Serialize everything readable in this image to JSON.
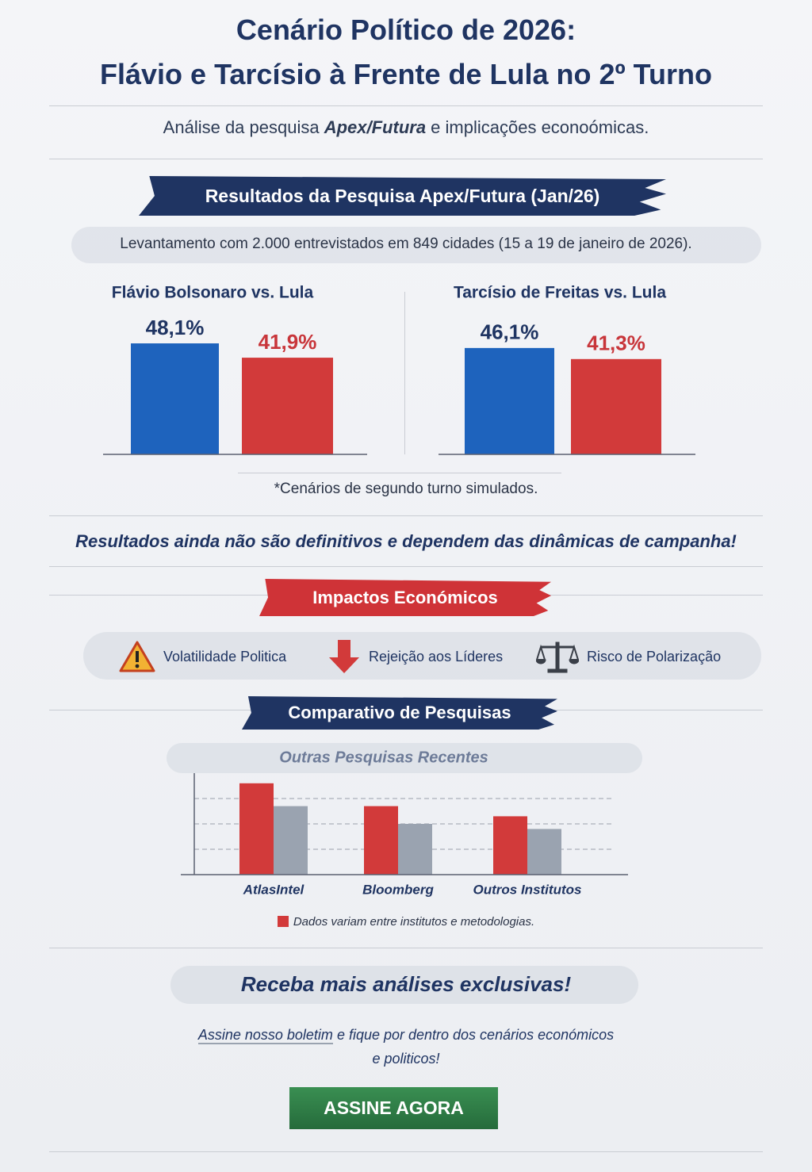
{
  "header": {
    "title_lines": [
      "Cenário Político de 2026:",
      "Flávio e Tarcísio à Frente de Lula no 2º Turno"
    ],
    "subtitle": [
      "Análise da pesquisa ",
      "Apex/Futura",
      " e implicações econoómicas."
    ]
  },
  "survey": {
    "banner": "Resultados da Pesquisa Apex/Futura (Jan/26)",
    "note": "Levantamento com 2.000 entrevistados em 849 cidades (15 a 19 de janeiro de 2026).",
    "footnote": "*Cenários de segundo turno simulados.",
    "statement": "Resultados ainda não são definitivos e dependem das dinâmicas de campanha!"
  },
  "impacts": {
    "banner": "Impactos Económicos",
    "items": [
      "Volatilidade Politica",
      "Rejeição aos Líderes",
      "Risco de Polarização"
    ]
  },
  "comparison": {
    "banner": "Comparativo de Pesquisas",
    "legend_note": "Dados variam entre institutos e metodologias.",
    "legend_color": "#d23a3a"
  },
  "chart_data": [
    {
      "type": "bar",
      "title": "Flávio Bolsonaro vs. Lula",
      "values": [
        48.1,
        41.9
      ],
      "value_labels": [
        "48,1%",
        "41,9%"
      ],
      "colors": [
        "#1e63bd",
        "#d23a3a"
      ],
      "label_colors": [
        "#1f3462",
        "#c8353a"
      ]
    },
    {
      "type": "bar",
      "title": "Tarcísio de Freitas vs. Lula",
      "values": [
        46.1,
        41.3
      ],
      "value_labels": [
        "46,1%",
        "41,3%"
      ],
      "colors": [
        "#1e63bd",
        "#d23a3a"
      ],
      "label_colors": [
        "#1f3462",
        "#c8353a"
      ]
    },
    {
      "type": "bar",
      "title": "Outras Pesquisas Recentes",
      "categories": [
        "AtlasIntel",
        "Bloomberg",
        "Outros Institutos"
      ],
      "series": [
        {
          "color": "#d23a3a",
          "values": [
            3.6,
            2.7,
            2.3
          ]
        },
        {
          "color": "#9aa3b0",
          "values": [
            2.7,
            2.0,
            1.8
          ]
        }
      ],
      "ylim": [
        0,
        4
      ],
      "yticks": [
        1,
        2,
        3
      ],
      "grid": true
    }
  ],
  "cta": {
    "title": "Receba mais análises exclusivas!",
    "lines": [
      "Assine nosso boletim",
      " e fique por dentro dos cenários económicos",
      "e politicos!"
    ],
    "button": "ASSINE AGORA"
  }
}
